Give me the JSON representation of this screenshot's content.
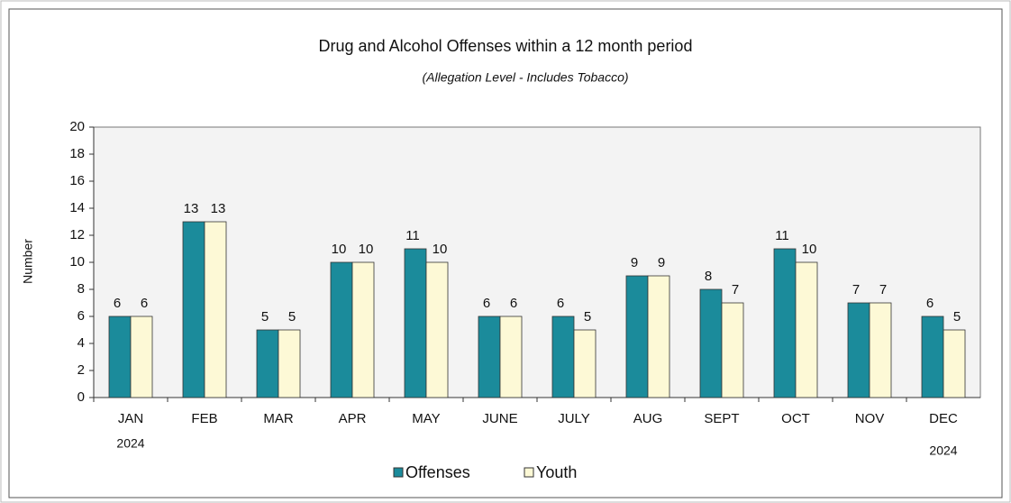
{
  "chart_data": {
    "type": "bar",
    "title": "Drug and Alcohol Offenses within a 12 month period",
    "subtitle": "(Allegation Level - Includes Tobacco)",
    "y_label": "Number",
    "annotations": [
      "2024",
      "2024"
    ],
    "categories": [
      "JAN",
      "FEB",
      "MAR",
      "APR",
      "MAY",
      "JUNE",
      "JULY",
      "AUG",
      "SEPT",
      "OCT",
      "NOV",
      "DEC"
    ],
    "series": [
      {
        "name": "Offenses",
        "color": "#1b8b9b",
        "values": [
          6,
          13,
          5,
          10,
          11,
          6,
          6,
          9,
          8,
          11,
          7,
          6
        ]
      },
      {
        "name": "Youth",
        "color": "#fdf9d6",
        "values": [
          6,
          13,
          5,
          10,
          10,
          6,
          5,
          9,
          7,
          10,
          7,
          5
        ]
      }
    ],
    "ylim": [
      0,
      20
    ],
    "yticks": [
      0,
      2,
      4,
      6,
      8,
      10,
      12,
      14,
      16,
      18,
      20
    ],
    "grid": false,
    "legend": "bottom"
  }
}
